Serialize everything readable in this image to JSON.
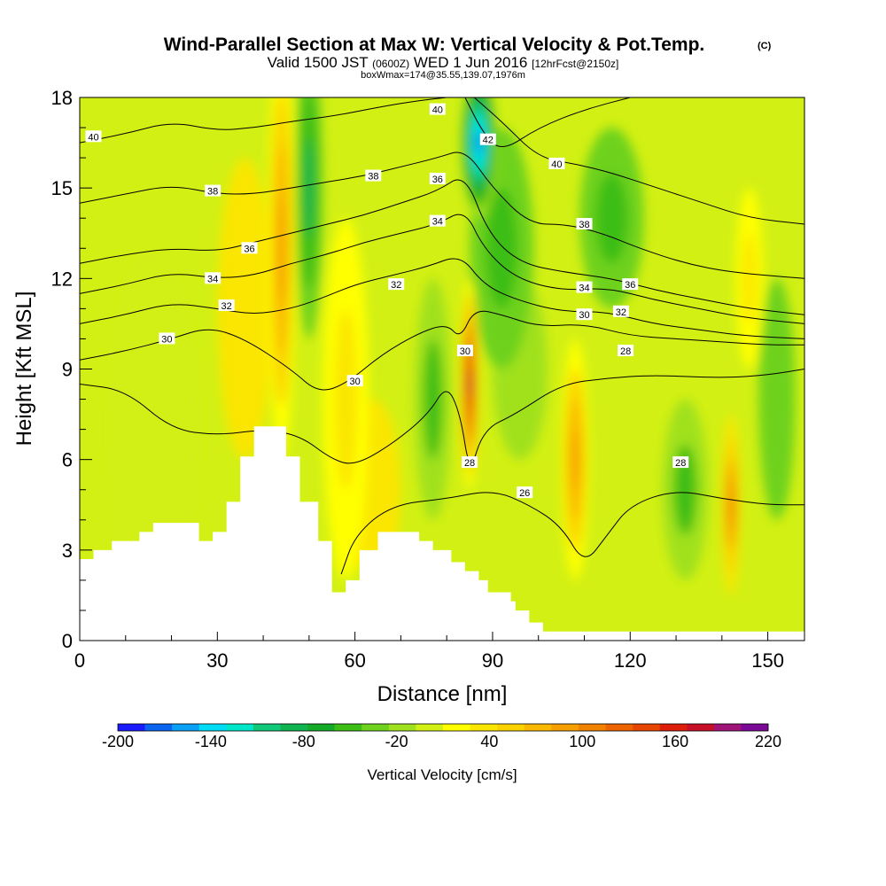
{
  "title": {
    "main": "Wind-Parallel Section at Max W: Vertical Velocity & Pot.Temp.",
    "copyright": "(C)",
    "valid_a": "Valid 1500 JST",
    "valid_b": "(0600Z)",
    "valid_c": "WED 1 Jun 2016",
    "valid_d": "[12hrFcst@2150z]",
    "box": "boxWmax=174@35.55,139.07,1976m"
  },
  "chart_data": {
    "type": "heatmap",
    "xlabel": "Distance [nm]",
    "ylabel": "Height [Kft MSL]",
    "xlim": [
      0,
      158
    ],
    "ylim": [
      0,
      18
    ],
    "x_ticks": [
      0,
      30,
      60,
      90,
      120,
      150
    ],
    "y_ticks": [
      0,
      3,
      6,
      9,
      12,
      15,
      18
    ],
    "colorbar": {
      "title": "Vertical Velocity [cm/s]",
      "tick_labels": [
        "-200",
        "-140",
        "-80",
        "-20",
        "40",
        "100",
        "160",
        "220"
      ],
      "colors": [
        "#1a1aff",
        "#0a64f0",
        "#0aa0f5",
        "#00dcf5",
        "#00e6c8",
        "#10c878",
        "#0fb450",
        "#14aa28",
        "#3cbe14",
        "#6ed21e",
        "#a0e11e",
        "#d2f014",
        "#ffff00",
        "#fae600",
        "#fad200",
        "#fab900",
        "#f5a000",
        "#f08200",
        "#eb6400",
        "#e64600",
        "#dc1e0a",
        "#c80f28",
        "#a01478",
        "#7a0a96"
      ]
    },
    "terrain_profile": [
      [
        0,
        2.7
      ],
      [
        3,
        3.0
      ],
      [
        7,
        3.3
      ],
      [
        13,
        3.6
      ],
      [
        16,
        3.9
      ],
      [
        26,
        3.3
      ],
      [
        29,
        3.6
      ],
      [
        32,
        4.6
      ],
      [
        35,
        6.1
      ],
      [
        38,
        7.1
      ],
      [
        45,
        6.1
      ],
      [
        48,
        4.6
      ],
      [
        52,
        3.3
      ],
      [
        55,
        1.6
      ],
      [
        58,
        2.0
      ],
      [
        61,
        3.0
      ],
      [
        65,
        3.6
      ],
      [
        74,
        3.3
      ],
      [
        77,
        3.0
      ],
      [
        81,
        2.6
      ],
      [
        84,
        2.3
      ],
      [
        87,
        2.0
      ],
      [
        89,
        1.6
      ],
      [
        94,
        1.3
      ],
      [
        95,
        1.0
      ],
      [
        98,
        0.6
      ],
      [
        101,
        0.3
      ],
      [
        158,
        0.3
      ]
    ],
    "vertical_velocity_features": [
      {
        "x": 16,
        "y": 7.0,
        "value": 5,
        "sx": 10,
        "sy": 6
      },
      {
        "x": 36,
        "y": 11.0,
        "value": 30,
        "sx": 6,
        "sy": 5
      },
      {
        "x": 44,
        "y": 13.0,
        "value": 90,
        "sx": 3,
        "sy": 7
      },
      {
        "x": 50,
        "y": 15.0,
        "value": -80,
        "sx": 3,
        "sy": 5
      },
      {
        "x": 58,
        "y": 8.0,
        "value": 40,
        "sx": 5,
        "sy": 6
      },
      {
        "x": 64,
        "y": 5.0,
        "value": 30,
        "sx": 6,
        "sy": 3
      },
      {
        "x": 77,
        "y": 8.0,
        "value": -45,
        "sx": 4,
        "sy": 4
      },
      {
        "x": 85,
        "y": 8.5,
        "value": 174,
        "sx": 2,
        "sy": 3.5
      },
      {
        "x": 87,
        "y": 16.5,
        "value": -170,
        "sx": 4,
        "sy": 2.5
      },
      {
        "x": 92,
        "y": 13.0,
        "value": -60,
        "sx": 7,
        "sy": 4
      },
      {
        "x": 96,
        "y": 9.0,
        "value": -25,
        "sx": 6,
        "sy": 3
      },
      {
        "x": 108,
        "y": 6.0,
        "value": 90,
        "sx": 3,
        "sy": 4
      },
      {
        "x": 116,
        "y": 14.0,
        "value": -60,
        "sx": 7,
        "sy": 3
      },
      {
        "x": 132,
        "y": 5.0,
        "value": -45,
        "sx": 5,
        "sy": 3
      },
      {
        "x": 142,
        "y": 4.5,
        "value": 110,
        "sx": 2,
        "sy": 3
      },
      {
        "x": 146,
        "y": 12.0,
        "value": 40,
        "sx": 3,
        "sy": 3
      },
      {
        "x": 152,
        "y": 8.0,
        "value": -30,
        "sx": 4,
        "sy": 4
      }
    ],
    "isentropes": [
      {
        "value": 26,
        "points": [
          [
            57,
            2.2
          ],
          [
            60,
            3.5
          ],
          [
            68,
            4.5
          ],
          [
            80,
            4.7
          ],
          [
            90,
            5.0
          ],
          [
            98,
            4.5
          ],
          [
            105,
            3.8
          ],
          [
            110,
            2.5
          ],
          [
            115,
            3.5
          ],
          [
            120,
            4.5
          ],
          [
            130,
            5.0
          ],
          [
            140,
            4.7
          ],
          [
            150,
            4.5
          ],
          [
            158,
            4.5
          ]
        ]
      },
      {
        "value": 28,
        "points": [
          [
            0,
            8.5
          ],
          [
            10,
            8.3
          ],
          [
            20,
            7.0
          ],
          [
            30,
            6.8
          ],
          [
            40,
            7.0
          ],
          [
            48,
            6.8
          ],
          [
            55,
            6.0
          ],
          [
            60,
            5.8
          ],
          [
            68,
            6.5
          ],
          [
            76,
            7.5
          ],
          [
            80,
            8.5
          ],
          [
            83,
            7.5
          ],
          [
            85,
            5.5
          ],
          [
            88,
            7.0
          ],
          [
            95,
            7.5
          ],
          [
            105,
            8.5
          ],
          [
            115,
            8.7
          ],
          [
            125,
            8.8
          ],
          [
            140,
            8.7
          ],
          [
            150,
            8.8
          ],
          [
            158,
            9.0
          ]
        ]
      },
      {
        "value": 30,
        "points": [
          [
            0,
            9.3
          ],
          [
            10,
            9.6
          ],
          [
            20,
            10.0
          ],
          [
            28,
            10.4
          ],
          [
            36,
            10.0
          ],
          [
            46,
            9.0
          ],
          [
            52,
            8.2
          ],
          [
            58,
            8.5
          ],
          [
            66,
            9.5
          ],
          [
            74,
            10.2
          ],
          [
            80,
            10.5
          ],
          [
            83,
            10.0
          ],
          [
            86,
            11.0
          ],
          [
            92,
            10.8
          ],
          [
            100,
            10.4
          ],
          [
            110,
            10.5
          ],
          [
            120,
            10.1
          ],
          [
            130,
            10.0
          ],
          [
            140,
            9.9
          ],
          [
            150,
            9.8
          ],
          [
            158,
            9.8
          ]
        ]
      },
      {
        "value": 32,
        "points": [
          [
            0,
            10.5
          ],
          [
            10,
            10.8
          ],
          [
            20,
            11.2
          ],
          [
            30,
            11.0
          ],
          [
            38,
            10.8
          ],
          [
            46,
            11.0
          ],
          [
            52,
            11.3
          ],
          [
            60,
            11.8
          ],
          [
            68,
            12.1
          ],
          [
            76,
            12.4
          ],
          [
            83,
            12.8
          ],
          [
            88,
            11.8
          ],
          [
            95,
            11.3
          ],
          [
            105,
            10.9
          ],
          [
            115,
            10.9
          ],
          [
            125,
            10.5
          ],
          [
            135,
            10.3
          ],
          [
            145,
            10.1
          ],
          [
            158,
            10.0
          ]
        ]
      },
      {
        "value": 34,
        "points": [
          [
            0,
            11.5
          ],
          [
            10,
            11.8
          ],
          [
            20,
            12.2
          ],
          [
            30,
            12.0
          ],
          [
            38,
            12.1
          ],
          [
            46,
            12.5
          ],
          [
            54,
            12.8
          ],
          [
            62,
            13.2
          ],
          [
            70,
            13.5
          ],
          [
            78,
            13.8
          ],
          [
            84,
            14.3
          ],
          [
            88,
            13.0
          ],
          [
            95,
            12.0
          ],
          [
            105,
            11.6
          ],
          [
            115,
            11.7
          ],
          [
            125,
            11.3
          ],
          [
            135,
            11.0
          ],
          [
            145,
            10.7
          ],
          [
            158,
            10.5
          ]
        ]
      },
      {
        "value": 36,
        "points": [
          [
            0,
            12.5
          ],
          [
            10,
            12.8
          ],
          [
            20,
            13.0
          ],
          [
            30,
            12.9
          ],
          [
            38,
            13.2
          ],
          [
            46,
            13.5
          ],
          [
            54,
            13.8
          ],
          [
            62,
            14.1
          ],
          [
            70,
            14.5
          ],
          [
            78,
            14.9
          ],
          [
            84,
            15.5
          ],
          [
            89,
            13.5
          ],
          [
            96,
            12.5
          ],
          [
            106,
            12.2
          ],
          [
            116,
            12.0
          ],
          [
            126,
            11.6
          ],
          [
            136,
            11.3
          ],
          [
            146,
            11.0
          ],
          [
            158,
            10.8
          ]
        ]
      },
      {
        "value": 38,
        "points": [
          [
            0,
            14.5
          ],
          [
            10,
            14.8
          ],
          [
            20,
            15.1
          ],
          [
            30,
            14.8
          ],
          [
            38,
            14.8
          ],
          [
            46,
            15.0
          ],
          [
            54,
            15.2
          ],
          [
            62,
            15.4
          ],
          [
            70,
            15.7
          ],
          [
            78,
            16.0
          ],
          [
            84,
            16.3
          ],
          [
            90,
            15.0
          ],
          [
            98,
            13.8
          ],
          [
            106,
            13.8
          ],
          [
            114,
            13.5
          ],
          [
            122,
            13.0
          ],
          [
            132,
            12.5
          ],
          [
            142,
            12.2
          ],
          [
            158,
            12.0
          ]
        ]
      },
      {
        "value": 40,
        "points": [
          [
            0,
            16.5
          ],
          [
            10,
            16.8
          ],
          [
            20,
            17.2
          ],
          [
            30,
            16.9
          ],
          [
            38,
            17.0
          ],
          [
            46,
            17.2
          ],
          [
            56,
            17.4
          ],
          [
            66,
            17.7
          ],
          [
            74,
            17.9
          ],
          [
            80,
            18.0
          ]
        ]
      },
      {
        "value": 40,
        "points": [
          [
            86,
            18.0
          ],
          [
            92,
            17.2
          ],
          [
            100,
            16.0
          ],
          [
            108,
            15.8
          ],
          [
            116,
            15.5
          ],
          [
            126,
            15.0
          ],
          [
            136,
            14.5
          ],
          [
            146,
            14.0
          ],
          [
            158,
            13.8
          ]
        ]
      },
      {
        "value": 42,
        "points": [
          [
            84,
            18.0
          ],
          [
            88,
            16.8
          ],
          [
            92,
            16.2
          ],
          [
            100,
            17.0
          ],
          [
            110,
            17.6
          ],
          [
            120,
            18.0
          ]
        ]
      }
    ],
    "contour_labels": [
      {
        "text": "40",
        "x": 3,
        "y": 16.7
      },
      {
        "text": "38",
        "x": 29,
        "y": 14.9
      },
      {
        "text": "36",
        "x": 37,
        "y": 13.0
      },
      {
        "text": "34",
        "x": 29,
        "y": 12.0
      },
      {
        "text": "32",
        "x": 32,
        "y": 11.1
      },
      {
        "text": "30",
        "x": 19,
        "y": 10.0
      },
      {
        "text": "30",
        "x": 60,
        "y": 8.6
      },
      {
        "text": "32",
        "x": 69,
        "y": 11.8
      },
      {
        "text": "34",
        "x": 78,
        "y": 13.9
      },
      {
        "text": "36",
        "x": 78,
        "y": 15.3
      },
      {
        "text": "38",
        "x": 64,
        "y": 15.4
      },
      {
        "text": "40",
        "x": 78,
        "y": 17.6
      },
      {
        "text": "42",
        "x": 89,
        "y": 16.6
      },
      {
        "text": "40",
        "x": 104,
        "y": 15.8
      },
      {
        "text": "38",
        "x": 110,
        "y": 13.8
      },
      {
        "text": "34",
        "x": 110,
        "y": 11.7
      },
      {
        "text": "36",
        "x": 120,
        "y": 11.8
      },
      {
        "text": "30",
        "x": 110,
        "y": 10.8
      },
      {
        "text": "32",
        "x": 118,
        "y": 10.9
      },
      {
        "text": "28",
        "x": 119,
        "y": 9.6
      },
      {
        "text": "30",
        "x": 84,
        "y": 9.6
      },
      {
        "text": "28",
        "x": 85,
        "y": 5.9
      },
      {
        "text": "26",
        "x": 97,
        "y": 4.9
      },
      {
        "text": "28",
        "x": 131,
        "y": 5.9
      }
    ]
  }
}
